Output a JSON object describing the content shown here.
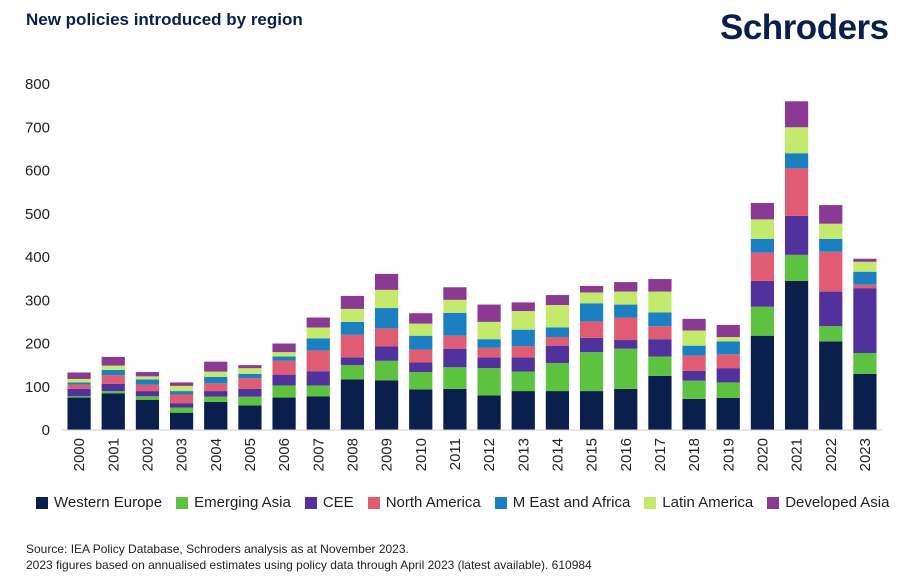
{
  "header": {
    "title": "New policies introduced by region",
    "brand": "Schroders"
  },
  "colors": {
    "Western Europe": "#0b1f4d",
    "Emerging Asia": "#5cc23f",
    "CEE": "#51319b",
    "North America": "#e05c73",
    "M East and Africa": "#1b80c2",
    "Latin America": "#c3ea6d",
    "Developed Asia": "#8a3a93"
  },
  "chart_data": {
    "type": "bar",
    "stacked": true,
    "title": "New policies introduced by region",
    "xlabel": "",
    "ylabel": "",
    "ylim": [
      0,
      800
    ],
    "yticks": [
      0,
      100,
      200,
      300,
      400,
      500,
      600,
      700,
      800
    ],
    "grid": false,
    "legend_position": "bottom",
    "categories": [
      "2000",
      "2001",
      "2002",
      "2003",
      "2004",
      "2005",
      "2006",
      "2007",
      "2008",
      "2009",
      "2010",
      "2011",
      "2012",
      "2013",
      "2014",
      "2015",
      "2016",
      "2017",
      "2018",
      "2019",
      "2020",
      "2021",
      "2022",
      "2023"
    ],
    "series": [
      {
        "name": "Western Europe",
        "values": [
          75,
          85,
          70,
          40,
          65,
          57,
          75,
          78,
          117,
          115,
          94,
          95,
          80,
          90,
          90,
          90,
          95,
          125,
          72,
          74,
          218,
          345,
          205,
          130
        ]
      },
      {
        "name": "Emerging Asia",
        "values": [
          3,
          5,
          8,
          12,
          12,
          20,
          28,
          25,
          33,
          45,
          40,
          50,
          63,
          45,
          65,
          90,
          93,
          45,
          42,
          36,
          67,
          60,
          35,
          48
        ]
      },
      {
        "name": "CEE",
        "values": [
          17,
          17,
          12,
          10,
          13,
          18,
          25,
          33,
          18,
          33,
          22,
          43,
          25,
          33,
          40,
          33,
          20,
          40,
          23,
          33,
          60,
          90,
          80,
          150
        ]
      },
      {
        "name": "North America",
        "values": [
          10,
          20,
          15,
          20,
          18,
          25,
          32,
          48,
          52,
          42,
          30,
          30,
          22,
          26,
          20,
          38,
          52,
          30,
          35,
          32,
          65,
          110,
          92,
          8
        ]
      },
      {
        "name": "M East and Africa",
        "values": [
          5,
          12,
          12,
          8,
          15,
          10,
          10,
          28,
          30,
          47,
          32,
          53,
          20,
          38,
          22,
          42,
          30,
          32,
          23,
          30,
          32,
          35,
          30,
          30
        ]
      },
      {
        "name": "Latin America",
        "values": [
          8,
          10,
          7,
          12,
          12,
          13,
          10,
          25,
          30,
          42,
          28,
          30,
          40,
          43,
          52,
          25,
          30,
          48,
          35,
          10,
          45,
          60,
          35,
          23
        ]
      },
      {
        "name": "Developed Asia",
        "values": [
          15,
          20,
          10,
          8,
          23,
          7,
          20,
          23,
          30,
          37,
          24,
          29,
          40,
          20,
          23,
          15,
          22,
          29,
          27,
          28,
          38,
          60,
          43,
          7
        ]
      }
    ]
  },
  "footer": {
    "source_line1": "Source: IEA Policy Database, Schroders analysis as at November 2023.",
    "source_line2": "2023 figures based on annualised estimates using policy data through April 2023 (latest available). 610984"
  }
}
